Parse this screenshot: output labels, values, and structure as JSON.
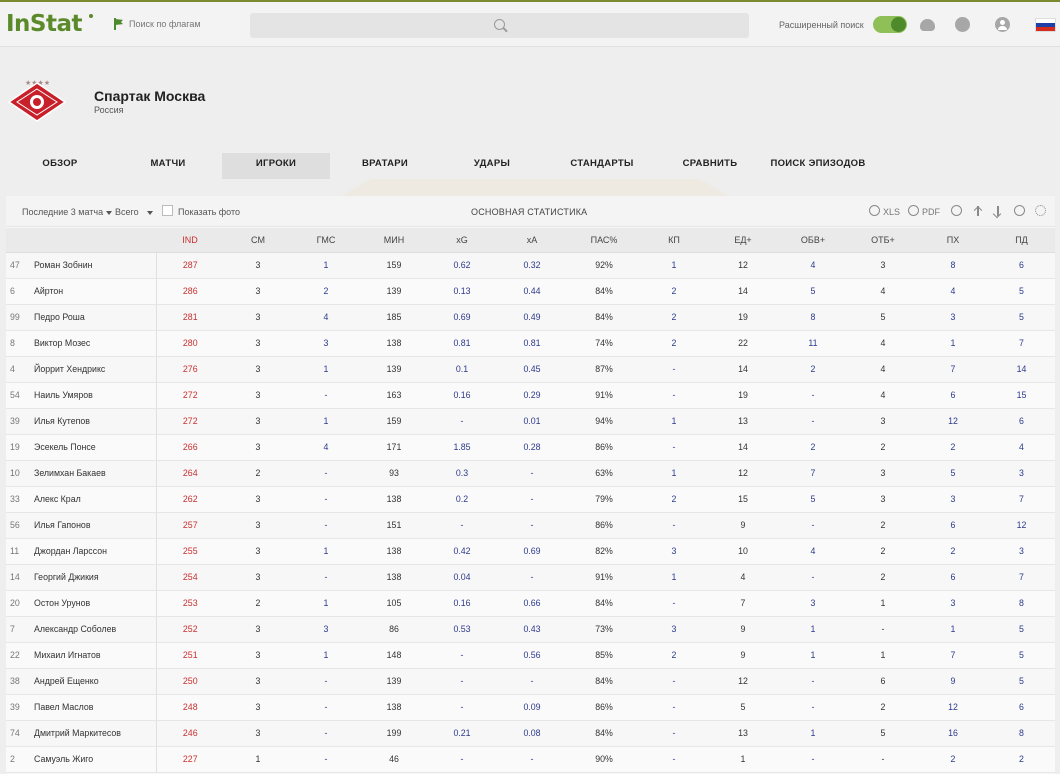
{
  "header": {
    "logo": "InStat",
    "flag_search": "Поиск по флагам",
    "search_placeholder": "",
    "advanced_search": "Расширенный поиск"
  },
  "team": {
    "name": "Спартак Москва",
    "country": "Россия",
    "stars": "★★★★"
  },
  "tabs": [
    {
      "label": "ОБЗОР"
    },
    {
      "label": "МАТЧИ"
    },
    {
      "label": "ИГРОКИ"
    },
    {
      "label": "ВРАТАРИ"
    },
    {
      "label": "УДАРЫ"
    },
    {
      "label": "СТАНДАРТЫ"
    },
    {
      "label": "СРАВНИТЬ"
    },
    {
      "label": "ПОИСК ЭПИЗОДОВ"
    }
  ],
  "toolbar": {
    "period": "Последние 3 матча",
    "scope": "Всего",
    "show_photo": "Показать фото",
    "title": "ОСНОВНАЯ СТАТИСТИКА",
    "xls": "XLS",
    "pdf": "PDF"
  },
  "table": {
    "columns": [
      "IND",
      "СМ",
      "ГМС",
      "МИН",
      "xG",
      "xA",
      "ПАС%",
      "КП",
      "ЕД+",
      "ОБВ+",
      "ОТБ+",
      "ПХ",
      "ПД"
    ],
    "rows": [
      {
        "num": "47",
        "name": "Роман Зобнин",
        "vals": [
          "287",
          "3",
          "1",
          "159",
          "0.62",
          "0.32",
          "92%",
          "1",
          "12",
          "4",
          "3",
          "8",
          "6"
        ]
      },
      {
        "num": "6",
        "name": "Айртон",
        "vals": [
          "286",
          "3",
          "2",
          "139",
          "0.13",
          "0.44",
          "84%",
          "2",
          "14",
          "5",
          "4",
          "4",
          "5"
        ]
      },
      {
        "num": "99",
        "name": "Педро Роша",
        "vals": [
          "281",
          "3",
          "4",
          "185",
          "0.69",
          "0.49",
          "84%",
          "2",
          "19",
          "8",
          "5",
          "3",
          "5"
        ]
      },
      {
        "num": "8",
        "name": "Виктор Мозес",
        "vals": [
          "280",
          "3",
          "3",
          "138",
          "0.81",
          "0.81",
          "74%",
          "2",
          "22",
          "11",
          "4",
          "1",
          "7"
        ]
      },
      {
        "num": "4",
        "name": "Йоррит Хендрикс",
        "vals": [
          "276",
          "3",
          "1",
          "139",
          "0.1",
          "0.45",
          "87%",
          "-",
          "14",
          "2",
          "4",
          "7",
          "14"
        ]
      },
      {
        "num": "54",
        "name": "Наиль Умяров",
        "vals": [
          "272",
          "3",
          "-",
          "163",
          "0.16",
          "0.29",
          "91%",
          "-",
          "19",
          "-",
          "4",
          "6",
          "15"
        ]
      },
      {
        "num": "39",
        "name": "Илья Кутепов",
        "vals": [
          "272",
          "3",
          "1",
          "159",
          "-",
          "0.01",
          "94%",
          "1",
          "13",
          "-",
          "3",
          "12",
          "6"
        ]
      },
      {
        "num": "19",
        "name": "Эсекель Понсе",
        "vals": [
          "266",
          "3",
          "4",
          "171",
          "1.85",
          "0.28",
          "86%",
          "-",
          "14",
          "2",
          "2",
          "2",
          "4"
        ]
      },
      {
        "num": "10",
        "name": "Зелимхан Бакаев",
        "vals": [
          "264",
          "2",
          "-",
          "93",
          "0.3",
          "-",
          "63%",
          "1",
          "12",
          "7",
          "3",
          "5",
          "3"
        ]
      },
      {
        "num": "33",
        "name": "Алекс Крал",
        "vals": [
          "262",
          "3",
          "-",
          "138",
          "0.2",
          "-",
          "79%",
          "2",
          "15",
          "5",
          "3",
          "3",
          "7"
        ]
      },
      {
        "num": "56",
        "name": "Илья Гапонов",
        "vals": [
          "257",
          "3",
          "-",
          "151",
          "-",
          "-",
          "86%",
          "-",
          "9",
          "-",
          "2",
          "6",
          "12"
        ]
      },
      {
        "num": "11",
        "name": "Джордан Ларссон",
        "vals": [
          "255",
          "3",
          "1",
          "138",
          "0.42",
          "0.69",
          "82%",
          "3",
          "10",
          "4",
          "2",
          "2",
          "3"
        ]
      },
      {
        "num": "14",
        "name": "Георгий Джикия",
        "vals": [
          "254",
          "3",
          "-",
          "138",
          "0.04",
          "-",
          "91%",
          "1",
          "4",
          "-",
          "2",
          "6",
          "7"
        ]
      },
      {
        "num": "20",
        "name": "Остон Урунов",
        "vals": [
          "253",
          "2",
          "1",
          "105",
          "0.16",
          "0.66",
          "84%",
          "-",
          "7",
          "3",
          "1",
          "3",
          "8"
        ]
      },
      {
        "num": "7",
        "name": "Александр Соболев",
        "vals": [
          "252",
          "3",
          "3",
          "86",
          "0.53",
          "0.43",
          "73%",
          "3",
          "9",
          "1",
          "-",
          "1",
          "5"
        ]
      },
      {
        "num": "22",
        "name": "Михаил Игнатов",
        "vals": [
          "251",
          "3",
          "1",
          "148",
          "-",
          "0.56",
          "85%",
          "2",
          "9",
          "1",
          "1",
          "7",
          "5"
        ]
      },
      {
        "num": "38",
        "name": "Андрей Ещенко",
        "vals": [
          "250",
          "3",
          "-",
          "139",
          "-",
          "-",
          "84%",
          "-",
          "12",
          "-",
          "6",
          "9",
          "5"
        ]
      },
      {
        "num": "39",
        "name": "Павел Маслов",
        "vals": [
          "248",
          "3",
          "-",
          "138",
          "-",
          "0.09",
          "86%",
          "-",
          "5",
          "-",
          "2",
          "12",
          "6"
        ]
      },
      {
        "num": "74",
        "name": "Дмитрий Маркитесов",
        "vals": [
          "246",
          "3",
          "-",
          "199",
          "0.21",
          "0.08",
          "84%",
          "-",
          "13",
          "1",
          "5",
          "16",
          "8"
        ]
      },
      {
        "num": "2",
        "name": "Самуэль Жиго",
        "vals": [
          "227",
          "1",
          "-",
          "46",
          "-",
          "-",
          "90%",
          "-",
          "1",
          "-",
          "-",
          "2",
          "2"
        ]
      }
    ]
  },
  "colors": {
    "accent": "#4e8a2c",
    "ind": "#c83030",
    "link": "#2d3a8c"
  }
}
